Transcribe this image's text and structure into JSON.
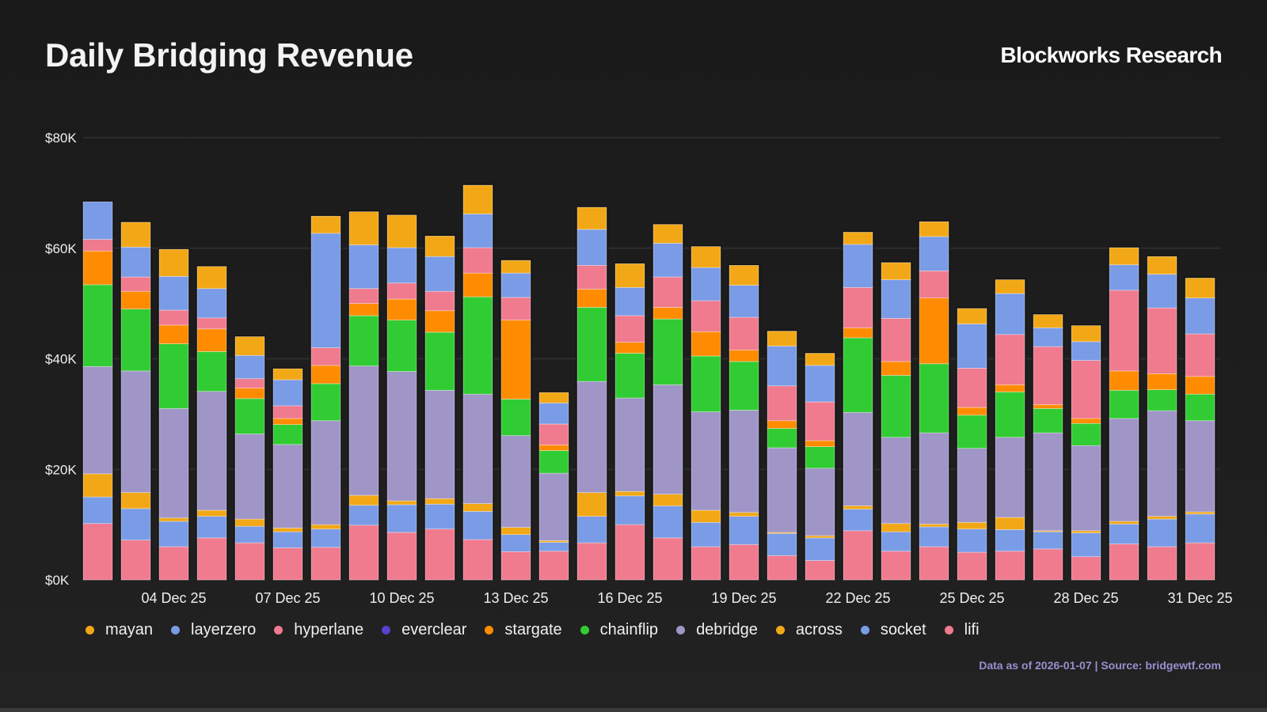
{
  "header": {
    "title": "Daily Bridging Revenue",
    "brand": "Blockworks Research"
  },
  "footer": {
    "note": "Data as of 2026-01-07 | Source: bridgewtf.com"
  },
  "chart_data": {
    "type": "bar",
    "stacked": true,
    "title": "Daily Bridging Revenue",
    "xlabel": "",
    "ylabel": "",
    "ylim": [
      0,
      80000
    ],
    "yticks": [
      0,
      20000,
      40000,
      60000,
      80000
    ],
    "ytick_labels": [
      "$0K",
      "$20K",
      "$40K",
      "$60K",
      "$80K"
    ],
    "grid": true,
    "legend_position": "bottom-left",
    "categories": [
      "02 Dec 25",
      "03 Dec 25",
      "04 Dec 25",
      "05 Dec 25",
      "06 Dec 25",
      "07 Dec 25",
      "08 Dec 25",
      "09 Dec 25",
      "10 Dec 25",
      "11 Dec 25",
      "12 Dec 25",
      "13 Dec 25",
      "14 Dec 25",
      "15 Dec 25",
      "16 Dec 25",
      "17 Dec 25",
      "18 Dec 25",
      "19 Dec 25",
      "20 Dec 25",
      "21 Dec 25",
      "22 Dec 25",
      "23 Dec 25",
      "24 Dec 25",
      "25 Dec 25",
      "26 Dec 25",
      "27 Dec 25",
      "28 Dec 25",
      "29 Dec 25",
      "30 Dec 25",
      "31 Dec 25"
    ],
    "xtick_labels": [
      {
        "index": 2,
        "label": "04 Dec 25"
      },
      {
        "index": 5,
        "label": "07 Dec 25"
      },
      {
        "index": 8,
        "label": "10 Dec 25"
      },
      {
        "index": 11,
        "label": "13 Dec 25"
      },
      {
        "index": 14,
        "label": "16 Dec 25"
      },
      {
        "index": 17,
        "label": "19 Dec 25"
      },
      {
        "index": 20,
        "label": "22 Dec 25"
      },
      {
        "index": 23,
        "label": "25 Dec 25"
      },
      {
        "index": 26,
        "label": "28 Dec 25"
      },
      {
        "index": 29,
        "label": "31 Dec 25"
      }
    ],
    "legend_order": [
      "mayan",
      "layerzero",
      "hyperlane",
      "everclear",
      "stargate",
      "chainflip",
      "debridge",
      "across",
      "socket",
      "lifi"
    ],
    "series": [
      {
        "name": "lifi",
        "color": "#F07A8E",
        "values": [
          10200,
          7200,
          6000,
          7600,
          6700,
          5800,
          5900,
          9900,
          8600,
          9200,
          7300,
          5100,
          5200,
          6700,
          10000,
          7600,
          6000,
          6400,
          4400,
          3500,
          8900,
          5200,
          6000,
          5000,
          5200,
          5600,
          4200,
          6500,
          6000,
          6700
        ]
      },
      {
        "name": "socket",
        "color": "#7A9BE6",
        "values": [
          4800,
          5700,
          4600,
          3900,
          3000,
          2900,
          3300,
          3600,
          5000,
          4500,
          5100,
          3100,
          1600,
          4800,
          5200,
          5800,
          4400,
          5100,
          4000,
          4100,
          3900,
          3500,
          3600,
          4200,
          3900,
          3100,
          4300,
          3600,
          5000,
          5200
        ]
      },
      {
        "name": "across",
        "color": "#F2A816",
        "values": [
          4200,
          2900,
          600,
          1100,
          1300,
          700,
          800,
          1800,
          700,
          1000,
          1400,
          1300,
          300,
          4300,
          800,
          2100,
          2200,
          700,
          200,
          400,
          600,
          1500,
          500,
          1200,
          2200,
          200,
          400,
          500,
          500,
          400
        ]
      },
      {
        "name": "debridge",
        "color": "#9F95C7",
        "values": [
          19400,
          22000,
          19800,
          21500,
          15400,
          15100,
          18800,
          23400,
          23400,
          19600,
          19800,
          16600,
          12200,
          20100,
          16900,
          19800,
          17800,
          18500,
          15300,
          12200,
          16900,
          15600,
          16500,
          13400,
          14500,
          17700,
          15400,
          18600,
          19100,
          16500
        ]
      },
      {
        "name": "chainflip",
        "color": "#31CC33",
        "values": [
          14800,
          11200,
          11700,
          7200,
          6400,
          3600,
          6700,
          9100,
          9300,
          10500,
          17600,
          6600,
          4100,
          13400,
          8100,
          11900,
          10100,
          8800,
          3500,
          3900,
          13500,
          11200,
          12500,
          6000,
          8200,
          4400,
          4000,
          5100,
          3800,
          4800
        ]
      },
      {
        "name": "stargate",
        "color": "#FF8C00",
        "values": [
          6100,
          3200,
          3400,
          4100,
          1900,
          1100,
          3300,
          2200,
          3800,
          3900,
          4300,
          14300,
          1000,
          3300,
          2000,
          2100,
          4400,
          2100,
          1400,
          1100,
          1800,
          2500,
          11900,
          1400,
          1300,
          700,
          900,
          3500,
          2900,
          3200
        ]
      },
      {
        "name": "everclear",
        "color": "#5B3FD0",
        "values": [
          0,
          0,
          0,
          0,
          0,
          0,
          0,
          0,
          0,
          0,
          0,
          0,
          0,
          0,
          0,
          0,
          0,
          0,
          0,
          0,
          0,
          0,
          0,
          0,
          0,
          0,
          0,
          0,
          0,
          0
        ]
      },
      {
        "name": "hyperlane",
        "color": "#F07A8E",
        "values": [
          2100,
          2600,
          2700,
          2000,
          1700,
          2300,
          3200,
          2700,
          2900,
          3500,
          4600,
          4100,
          3800,
          4300,
          4800,
          5500,
          5600,
          5900,
          6300,
          7000,
          7300,
          7800,
          4900,
          7100,
          9100,
          10500,
          10500,
          14600,
          11900,
          7700
        ]
      },
      {
        "name": "layerzero",
        "color": "#7A9BE6",
        "values": [
          6800,
          5400,
          6100,
          5300,
          4200,
          4700,
          20700,
          7900,
          6400,
          6300,
          6100,
          4400,
          3800,
          6500,
          5100,
          6100,
          6000,
          5800,
          7200,
          6600,
          7800,
          7000,
          6200,
          8000,
          7400,
          3400,
          3400,
          4600,
          6100,
          6500
        ]
      },
      {
        "name": "mayan",
        "color": "#F2A816",
        "values": [
          0,
          4500,
          4900,
          4000,
          3400,
          2000,
          3100,
          6000,
          5900,
          3700,
          5200,
          2300,
          1900,
          4000,
          4300,
          3400,
          3800,
          3600,
          2700,
          2200,
          2200,
          3100,
          2700,
          2800,
          2500,
          2400,
          2900,
          3100,
          3200,
          3600
        ]
      }
    ]
  }
}
